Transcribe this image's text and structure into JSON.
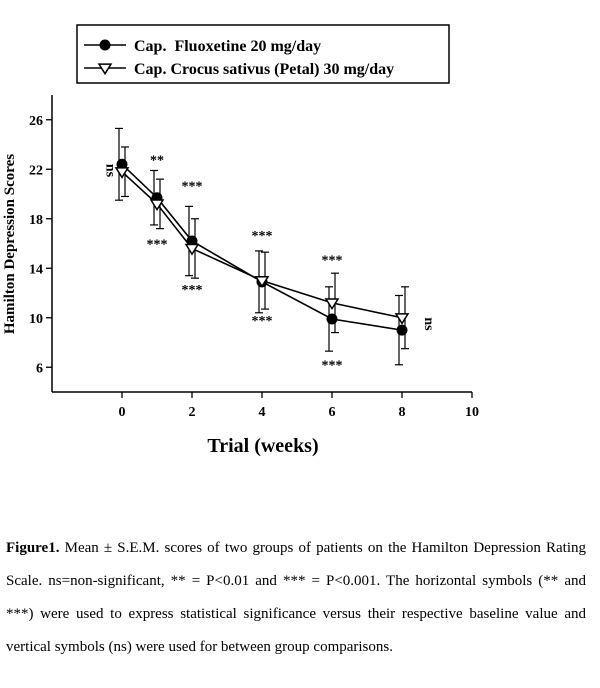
{
  "chart_data": {
    "type": "line",
    "xlabel": "Trial (weeks)",
    "ylabel": "Hamilton Depression Scores",
    "xlim": [
      -2,
      10
    ],
    "ylim": [
      4,
      28
    ],
    "xticks": [
      0,
      2,
      4,
      6,
      8,
      10
    ],
    "yticks": [
      6,
      10,
      14,
      18,
      22,
      26
    ],
    "legend_position": "top",
    "series": [
      {
        "name": "Cap.  Fluoxetine 20 mg/day",
        "marker": "filled-circle",
        "x": [
          0,
          1,
          2,
          4,
          6,
          8
        ],
        "values": [
          22.4,
          19.7,
          16.2,
          12.9,
          9.9,
          9.0
        ],
        "error": [
          2.9,
          2.2,
          2.8,
          2.5,
          2.6,
          2.8
        ]
      },
      {
        "name": "Cap. Crocus sativus (Petal) 30 mg/day",
        "marker": "open-triangle-down",
        "x": [
          0,
          1,
          2,
          4,
          6,
          8
        ],
        "values": [
          21.8,
          19.2,
          15.6,
          13.0,
          11.2,
          10.0
        ],
        "error": [
          2.0,
          2.0,
          2.4,
          2.3,
          2.4,
          2.5
        ]
      }
    ],
    "annotations": [
      {
        "text": "ns",
        "x": -0.45,
        "y": 21.9,
        "rotate": 90
      },
      {
        "text": "**",
        "x": 1.0,
        "y": 22.4
      },
      {
        "text": "***",
        "x": 1.0,
        "y": 15.6
      },
      {
        "text": "***",
        "x": 2.0,
        "y": 20.3
      },
      {
        "text": "***",
        "x": 2.0,
        "y": 11.9
      },
      {
        "text": "***",
        "x": 4.0,
        "y": 16.3
      },
      {
        "text": "***",
        "x": 4.0,
        "y": 9.4
      },
      {
        "text": "***",
        "x": 6.0,
        "y": 14.3
      },
      {
        "text": "***",
        "x": 6.0,
        "y": 5.8
      },
      {
        "text": "ns",
        "x": 8.65,
        "y": 9.5,
        "rotate": 90
      }
    ]
  },
  "caption": {
    "label": "Figure1.",
    "text": " Mean ± S.E.M. scores of two groups of patients on the Hamilton Depression Rating Scale. ns=non-significant, ** = P<0.01 and *** = P<0.001. The horizontal symbols (** and ***) were used to express statistical significance versus their respective baseline value and vertical symbols (ns) were used for between group comparisons."
  }
}
